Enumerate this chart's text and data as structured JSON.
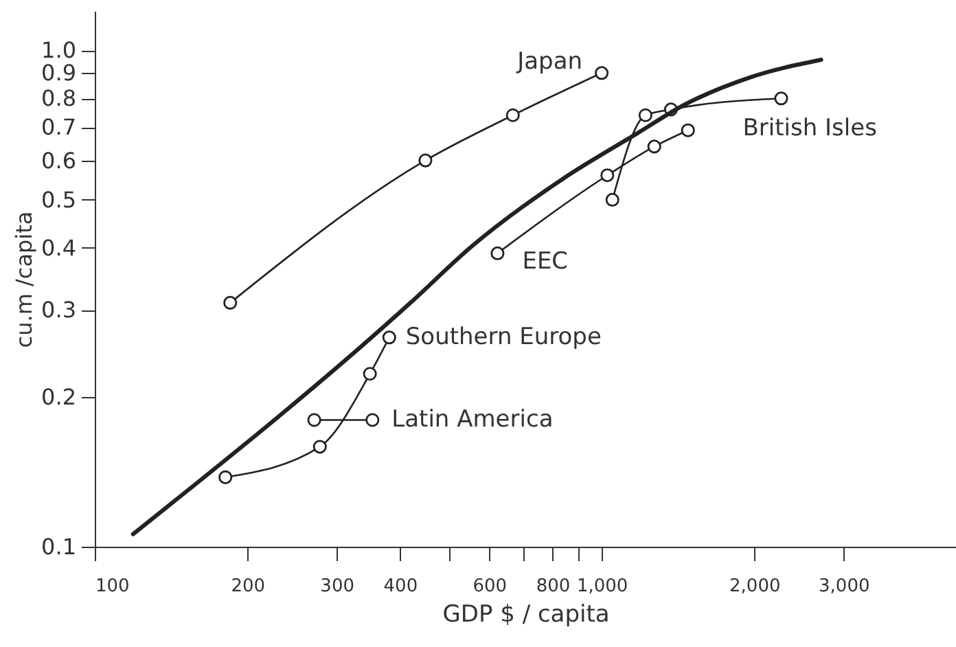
{
  "chart_data": {
    "type": "line",
    "xlabel": "GDP $ / capita",
    "ylabel": "cu.m /capita",
    "log": "xy",
    "grid": false,
    "legend": false,
    "xlim": [
      100,
      5000
    ],
    "xticks": [
      100,
      200,
      300,
      400,
      {
        "value": 500,
        "label": null
      },
      600,
      {
        "value": 700,
        "label": null
      },
      800,
      {
        "value": 900,
        "label": null
      },
      {
        "value": 1000,
        "label": "1,000"
      },
      {
        "value": 2000,
        "label": "2,000"
      },
      {
        "value": 3000,
        "label": "3,000"
      }
    ],
    "ylim": [
      0.1,
      1.2
    ],
    "yticks": [
      0.1,
      0.2,
      0.3,
      0.4,
      0.5,
      0.6,
      0.7,
      0.8,
      0.9,
      {
        "value": 1,
        "label": "1.0"
      }
    ],
    "series": [
      {
        "name": "Japan",
        "color": "#222222",
        "marker": "circle",
        "x": [
          185,
          449,
          668,
          1000
        ],
        "values": [
          0.31,
          0.6,
          0.74,
          0.9
        ]
      },
      {
        "name": "British Isles",
        "color": "#222222",
        "marker": "circle",
        "x": [
          1050,
          1220,
          1370,
          2260
        ],
        "values": [
          0.5,
          0.74,
          0.76,
          0.8
        ]
      },
      {
        "name": "EEC",
        "color": "#222222",
        "marker": "circle",
        "x": [
          623,
          1026,
          1270,
          1480
        ],
        "values": [
          0.39,
          0.56,
          0.64,
          0.69
        ]
      },
      {
        "name": "Southern Europe",
        "color": "#222222",
        "marker": "circle",
        "x": [
          181,
          278,
          349,
          381
        ],
        "values": [
          0.138,
          0.159,
          0.223,
          0.264
        ]
      },
      {
        "name": "Latin America",
        "color": "#222222",
        "marker": "circle",
        "x": [
          271,
          353
        ],
        "values": [
          0.18,
          0.18
        ]
      },
      {
        "color": "#222222",
        "marker": "none",
        "x": [
          119,
          421,
          553,
          843,
          1180,
          1450,
          1950,
          2710
        ],
        "values": [
          0.106,
          0.311,
          0.402,
          0.553,
          0.682,
          0.775,
          0.88,
          0.957
        ]
      }
    ]
  }
}
